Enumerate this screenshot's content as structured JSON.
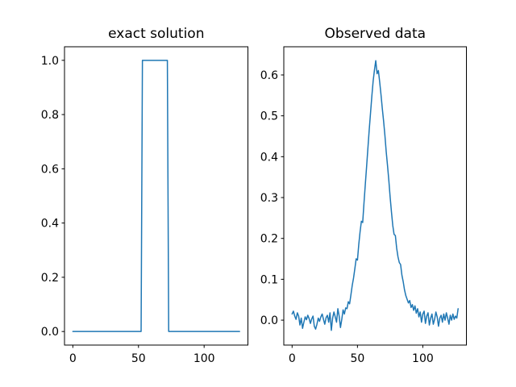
{
  "figure": {
    "background": "#ffffff"
  },
  "chart_data": [
    {
      "type": "line",
      "title": "exact solution",
      "n_points": 128,
      "x_range": [
        0,
        127
      ],
      "xlim": [
        -6.35,
        133.35
      ],
      "ylim": [
        -0.05,
        1.05
      ],
      "xticks": [
        0,
        50,
        100
      ],
      "xtick_labels": [
        "0",
        "50",
        "100"
      ],
      "yticks": [
        0.0,
        0.2,
        0.4,
        0.6,
        0.8,
        1.0
      ],
      "ytick_labels": [
        "0.0",
        "0.2",
        "0.4",
        "0.6",
        "0.8",
        "1.0"
      ],
      "line_color": "#1f77b4",
      "values": [
        0,
        0,
        0,
        0,
        0,
        0,
        0,
        0,
        0,
        0,
        0,
        0,
        0,
        0,
        0,
        0,
        0,
        0,
        0,
        0,
        0,
        0,
        0,
        0,
        0,
        0,
        0,
        0,
        0,
        0,
        0,
        0,
        0,
        0,
        0,
        0,
        0,
        0,
        0,
        0,
        0,
        0,
        0,
        0,
        0,
        0,
        0,
        0,
        0,
        0,
        0,
        0,
        0,
        1,
        1,
        1,
        1,
        1,
        1,
        1,
        1,
        1,
        1,
        1,
        1,
        1,
        1,
        1,
        1,
        1,
        1,
        1,
        1,
        0,
        0,
        0,
        0,
        0,
        0,
        0,
        0,
        0,
        0,
        0,
        0,
        0,
        0,
        0,
        0,
        0,
        0,
        0,
        0,
        0,
        0,
        0,
        0,
        0,
        0,
        0,
        0,
        0,
        0,
        0,
        0,
        0,
        0,
        0,
        0,
        0,
        0,
        0,
        0,
        0,
        0,
        0,
        0,
        0,
        0,
        0,
        0,
        0,
        0,
        0,
        0,
        0,
        0,
        0
      ]
    },
    {
      "type": "line",
      "title": "Observed data",
      "n_points": 128,
      "x_range": [
        0,
        127
      ],
      "xlim": [
        -6.35,
        133.35
      ],
      "ylim": [
        -0.061,
        0.669
      ],
      "xticks": [
        0,
        50,
        100
      ],
      "xtick_labels": [
        "0",
        "50",
        "100"
      ],
      "yticks": [
        0.0,
        0.1,
        0.2,
        0.3,
        0.4,
        0.5,
        0.6
      ],
      "ytick_labels": [
        "0.0",
        "0.1",
        "0.2",
        "0.3",
        "0.4",
        "0.5",
        "0.6"
      ],
      "line_color": "#1f77b4",
      "values": [
        0.015,
        0.022,
        0.01,
        0.002,
        0.018,
        0.01,
        -0.012,
        0.005,
        -0.02,
        -0.005,
        0.008,
        0.001,
        0.012,
        0.004,
        -0.008,
        0.003,
        0.01,
        -0.015,
        -0.022,
        -0.01,
        0.005,
        -0.003,
        0.008,
        0.015,
        0.002,
        -0.01,
        0.006,
        0.012,
        -0.005,
        0.018,
        -0.025,
        0.005,
        0.02,
        0.008,
        -0.005,
        0.028,
        0.01,
        -0.018,
        0.002,
        0.025,
        0.015,
        0.03,
        0.028,
        0.045,
        0.04,
        0.062,
        0.085,
        0.103,
        0.126,
        0.15,
        0.147,
        0.185,
        0.216,
        0.242,
        0.239,
        0.287,
        0.332,
        0.376,
        0.421,
        0.466,
        0.507,
        0.548,
        0.585,
        0.612,
        0.635,
        0.603,
        0.611,
        0.583,
        0.552,
        0.518,
        0.487,
        0.452,
        0.412,
        0.378,
        0.342,
        0.301,
        0.265,
        0.232,
        0.21,
        0.207,
        0.176,
        0.155,
        0.141,
        0.136,
        0.11,
        0.094,
        0.074,
        0.06,
        0.051,
        0.042,
        0.048,
        0.031,
        0.038,
        0.024,
        0.035,
        0.017,
        0.028,
        0.008,
        0.02,
        -0.005,
        0.015,
        0.022,
        -0.008,
        0.01,
        0.018,
        -0.012,
        0.005,
        0.015,
        -0.01,
        0.002,
        0.02,
        0.008,
        -0.015,
        0.005,
        0.012,
        -0.005,
        0.015,
        0.0,
        0.018,
        0.005,
        -0.01,
        0.012,
        0.0,
        0.015,
        0.002,
        0.01,
        0.005,
        0.028
      ]
    }
  ]
}
